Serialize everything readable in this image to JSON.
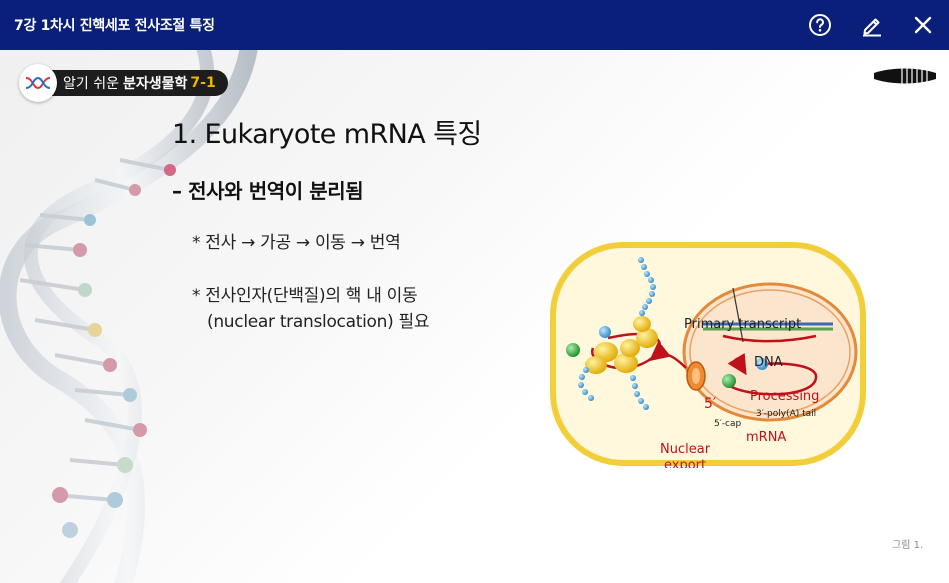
{
  "window": {
    "title": "7강 1차시 진핵세포 전사조절 특징",
    "help_icon": "help-circle-icon",
    "edit_icon": "pencil-icon",
    "close_icon": "close-icon"
  },
  "badge": {
    "light_text": "알기 쉬운",
    "bold_text": "분자생물학",
    "number": "7-1"
  },
  "slide": {
    "heading": "1. Eukaryote mRNA 특징",
    "subheading": "– 전사와 번역이 분리됨",
    "bullet1": "* 전사 → 가공 → 이동 → 번역",
    "bullet2_line1": "* 전사인자(단백질)의 핵 내 이동",
    "bullet2_line2": "(nuclear translocation) 필요"
  },
  "figure": {
    "primary_transcript": "Primary transcript",
    "dna": "DNA",
    "five_prime": "5′",
    "processing": "Processing",
    "poly_a": "3′-poly(A) tail",
    "five_cap": "5′-cap",
    "mrna": "mRNA",
    "nuclear": "Nuclear",
    "export": "export",
    "caption": "그림 1."
  },
  "colors": {
    "titlebar": "#0a1f7a",
    "accent_red": "#c0101a",
    "cell_border": "#f2cf3a",
    "nucleus_border": "#e38a3a"
  }
}
